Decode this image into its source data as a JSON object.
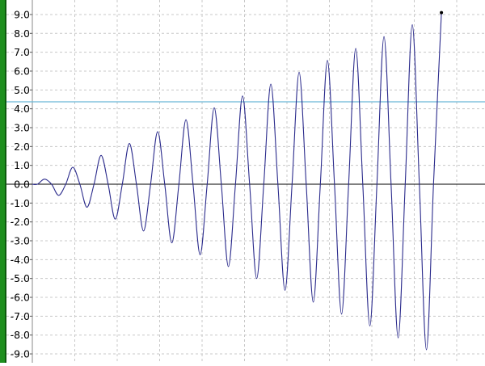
{
  "chart_data": {
    "type": "line",
    "x": [
      0,
      0.18,
      0.43,
      0.68,
      0.93,
      1.18,
      1.43,
      1.68,
      1.93,
      2.18,
      2.43,
      2.68,
      2.93,
      3.18,
      3.43,
      3.68,
      3.93,
      4.18,
      4.43,
      4.68,
      4.93,
      5.18,
      5.43,
      5.68,
      5.93,
      6.18,
      6.43,
      6.68,
      6.93,
      7.18,
      7.43,
      7.68,
      7.93,
      8.18,
      8.43,
      8.68,
      8.93,
      9.18,
      9.43,
      9.68,
      9.93,
      10.18,
      10.43,
      10.68,
      10.93,
      11.18,
      11.43,
      11.68,
      11.93,
      12.18,
      12.43,
      12.68,
      12.93,
      13.18,
      13.43,
      13.68,
      13.93,
      14.18,
      14.46
    ],
    "series": [
      {
        "color": "#2b2b8c",
        "values": [
          0,
          0,
          0.27,
          0,
          -0.59,
          0,
          0.9,
          0,
          -1.22,
          0,
          1.53,
          0,
          -1.85,
          0,
          2.16,
          0,
          -2.48,
          0,
          2.79,
          0,
          -3.11,
          0,
          3.42,
          0,
          -3.74,
          0,
          4.05,
          0,
          -4.37,
          0,
          4.68,
          0,
          -5.0,
          0,
          5.31,
          0,
          -5.63,
          0,
          5.94,
          0,
          -6.26,
          0,
          6.57,
          0,
          -6.89,
          0,
          7.2,
          0,
          -7.52,
          0,
          7.83,
          0,
          -8.15,
          0,
          8.46,
          0,
          -8.78,
          0,
          9.1
        ]
      }
    ],
    "xlim": [
      0,
      16
    ],
    "xticks": [
      0,
      1.5,
      3,
      4.5,
      6,
      7.5,
      9,
      10.5,
      12,
      13.5,
      15
    ],
    "ylim": [
      -9.47,
      9.77
    ],
    "yticks": [
      {
        "value": -9,
        "label": "-9.0"
      },
      {
        "value": -8,
        "label": "-8.0"
      },
      {
        "value": -7,
        "label": "-7.0"
      },
      {
        "value": -6,
        "label": "-6.0"
      },
      {
        "value": -5,
        "label": "-5.0"
      },
      {
        "value": -4,
        "label": "-4.0"
      },
      {
        "value": -3,
        "label": "-3.0"
      },
      {
        "value": -2,
        "label": "-2.0"
      },
      {
        "value": -1,
        "label": "-1.0"
      },
      {
        "value": 0,
        "label": "0.0"
      },
      {
        "value": 1,
        "label": "1.0"
      },
      {
        "value": 2,
        "label": "2.0"
      },
      {
        "value": 3,
        "label": "3.0"
      },
      {
        "value": 4,
        "label": "4.0"
      },
      {
        "value": 5,
        "label": "5.0"
      },
      {
        "value": 6,
        "label": "6.0"
      },
      {
        "value": 7,
        "label": "7.0"
      },
      {
        "value": 8,
        "label": "8.0"
      },
      {
        "value": 9,
        "label": "9.0"
      }
    ],
    "hline": {
      "value": 4.37,
      "color": "#6ab7d6"
    },
    "grid": true
  }
}
